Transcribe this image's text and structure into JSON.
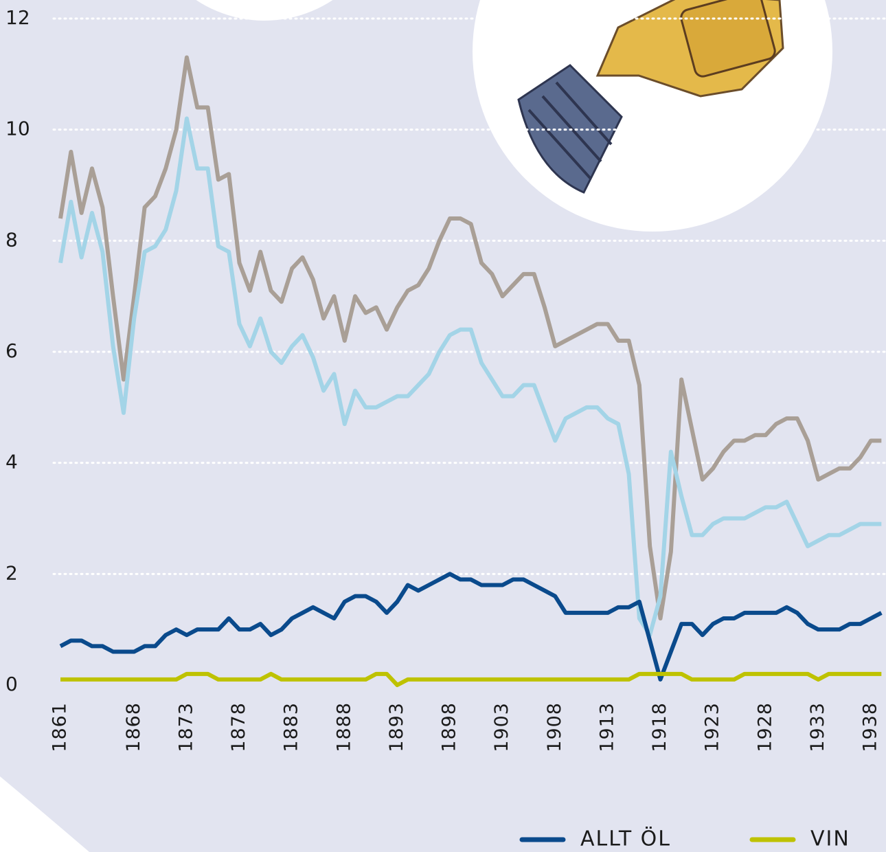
{
  "chart_data": {
    "type": "line",
    "x": [
      1861,
      1862,
      1863,
      1864,
      1865,
      1866,
      1867,
      1868,
      1869,
      1870,
      1871,
      1872,
      1873,
      1874,
      1875,
      1876,
      1877,
      1878,
      1879,
      1880,
      1881,
      1882,
      1883,
      1884,
      1885,
      1886,
      1887,
      1888,
      1889,
      1890,
      1891,
      1892,
      1893,
      1894,
      1895,
      1896,
      1897,
      1898,
      1899,
      1900,
      1901,
      1902,
      1903,
      1904,
      1905,
      1906,
      1907,
      1908,
      1909,
      1910,
      1911,
      1912,
      1913,
      1914,
      1915,
      1916,
      1917,
      1918,
      1919,
      1920,
      1921,
      1922,
      1923,
      1924,
      1925,
      1926,
      1927,
      1928,
      1929,
      1930,
      1931,
      1932,
      1933,
      1934,
      1935,
      1936,
      1937,
      1938,
      1939
    ],
    "xlim": [
      1861,
      1939
    ],
    "xticks": [
      1861,
      1868,
      1873,
      1878,
      1883,
      1888,
      1893,
      1898,
      1903,
      1908,
      1913,
      1918,
      1923,
      1928,
      1933,
      1938
    ],
    "ylim": [
      0,
      12
    ],
    "yticks": [
      0,
      2,
      4,
      6,
      8,
      10,
      12
    ],
    "grid": true,
    "series": [
      {
        "color": "#a99f96",
        "values": [
          8.4,
          9.6,
          8.5,
          9.3,
          8.6,
          7.0,
          5.5,
          7.0,
          8.6,
          8.8,
          9.3,
          10.0,
          11.3,
          10.4,
          10.4,
          9.1,
          9.2,
          7.6,
          7.1,
          7.8,
          7.1,
          6.9,
          7.5,
          7.7,
          7.3,
          6.6,
          7.0,
          6.2,
          7.0,
          6.7,
          6.8,
          6.4,
          6.8,
          7.1,
          7.2,
          7.5,
          8.0,
          8.4,
          8.4,
          8.3,
          7.6,
          7.4,
          7.0,
          7.2,
          7.4,
          7.4,
          6.8,
          6.1,
          6.2,
          6.3,
          6.4,
          6.5,
          6.5,
          6.2,
          6.2,
          5.4,
          2.5,
          1.2,
          2.4,
          5.5,
          4.6,
          3.7,
          3.9,
          4.2,
          4.4,
          4.4,
          4.5,
          4.5,
          4.7,
          4.8,
          4.8,
          4.4,
          3.7,
          3.8,
          3.9,
          3.9,
          4.1,
          4.4,
          4.4
        ]
      },
      {
        "color": "#a3d4e7",
        "values": [
          7.6,
          8.7,
          7.7,
          8.5,
          7.8,
          6.1,
          4.9,
          6.6,
          7.8,
          7.9,
          8.2,
          8.9,
          10.2,
          9.3,
          9.3,
          7.9,
          7.8,
          6.5,
          6.1,
          6.6,
          6.0,
          5.8,
          6.1,
          6.3,
          5.9,
          5.3,
          5.6,
          4.7,
          5.3,
          5.0,
          5.0,
          5.1,
          5.2,
          5.2,
          5.4,
          5.6,
          6.0,
          6.3,
          6.4,
          6.4,
          5.8,
          5.5,
          5.2,
          5.2,
          5.4,
          5.4,
          4.9,
          4.4,
          4.8,
          4.9,
          5.0,
          5.0,
          4.8,
          4.7,
          3.8,
          1.2,
          0.9,
          1.6,
          4.2,
          3.4,
          2.7,
          2.7,
          2.9,
          3.0,
          3.0,
          3.0,
          3.1,
          3.2,
          3.2,
          3.3,
          2.9,
          2.5,
          2.6,
          2.7,
          2.7,
          2.8,
          2.9,
          2.9,
          2.9
        ]
      },
      {
        "name": "ALLT ÖL",
        "color": "#0a4a8c",
        "values": [
          0.7,
          0.8,
          0.8,
          0.7,
          0.7,
          0.6,
          0.6,
          0.6,
          0.7,
          0.7,
          0.9,
          1.0,
          0.9,
          1.0,
          1.0,
          1.0,
          1.2,
          1.0,
          1.0,
          1.1,
          0.9,
          1.0,
          1.2,
          1.3,
          1.4,
          1.3,
          1.2,
          1.5,
          1.6,
          1.6,
          1.5,
          1.3,
          1.5,
          1.8,
          1.7,
          1.8,
          1.9,
          2.0,
          1.9,
          1.9,
          1.8,
          1.8,
          1.8,
          1.9,
          1.9,
          1.8,
          1.7,
          1.6,
          1.3,
          1.3,
          1.3,
          1.3,
          1.3,
          1.4,
          1.4,
          1.5,
          0.8,
          0.1,
          0.6,
          1.1,
          1.1,
          0.9,
          1.1,
          1.2,
          1.2,
          1.3,
          1.3,
          1.3,
          1.3,
          1.4,
          1.3,
          1.1,
          1.0,
          1.0,
          1.0,
          1.1,
          1.1,
          1.2,
          1.3
        ]
      },
      {
        "name": "VIN",
        "color": "#bec200",
        "values": [
          0.1,
          0.1,
          0.1,
          0.1,
          0.1,
          0.1,
          0.1,
          0.1,
          0.1,
          0.1,
          0.1,
          0.1,
          0.2,
          0.2,
          0.2,
          0.1,
          0.1,
          0.1,
          0.1,
          0.1,
          0.2,
          0.1,
          0.1,
          0.1,
          0.1,
          0.1,
          0.1,
          0.1,
          0.1,
          0.1,
          0.2,
          0.2,
          0,
          0.1,
          0.1,
          0.1,
          0.1,
          0.1,
          0.1,
          0.1,
          0.1,
          0.1,
          0.1,
          0.1,
          0.1,
          0.1,
          0.1,
          0.1,
          0.1,
          0.1,
          0.1,
          0.1,
          0.1,
          0.1,
          0.1,
          0.2,
          0.2,
          0.2,
          0.2,
          0.2,
          0.1,
          0.1,
          0.1,
          0.1,
          0.1,
          0.2,
          0.2,
          0.2,
          0.2,
          0.2,
          0.2,
          0.2,
          0.1,
          0.2,
          0.2,
          0.2,
          0.2,
          0.2,
          0.2
        ]
      }
    ]
  }
}
